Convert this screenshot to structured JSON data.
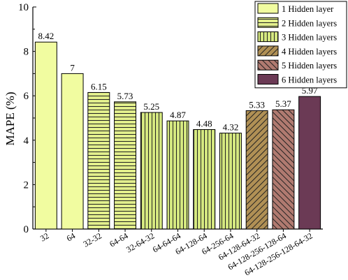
{
  "chart_data": {
    "type": "bar",
    "title": "",
    "xlabel": "",
    "ylabel": "MAPE (%)",
    "ylim": [
      0,
      10
    ],
    "yticks": [
      0,
      2,
      4,
      6,
      8,
      10
    ],
    "grid": false,
    "legend_position": "top-right",
    "categories": [
      "32",
      "64",
      "32-32",
      "64-64",
      "32-64-32",
      "64-64-64",
      "64-128-64",
      "64-256-64",
      "64-128-64-32",
      "64-128-256-128-64",
      "64-128-256-128-64-32"
    ],
    "values": [
      8.42,
      7,
      6.15,
      5.73,
      5.25,
      4.87,
      4.48,
      4.32,
      5.33,
      5.37,
      5.97
    ],
    "value_labels": [
      "8.42",
      "7",
      "6.15",
      "5.73",
      "5.25",
      "4.87",
      "4.48",
      "4.32",
      "5.33",
      "5.37",
      "5.97"
    ],
    "groups": [
      0,
      0,
      1,
      1,
      2,
      2,
      2,
      2,
      3,
      4,
      5
    ],
    "series": [
      {
        "name": "1 Hidden layer",
        "fill": "#f1fca0",
        "pattern": "none"
      },
      {
        "name": "2 Hidden layers",
        "fill": "#e2ef8c",
        "pattern": "horizontal"
      },
      {
        "name": "3 Hidden layers",
        "fill": "#d5e880",
        "pattern": "vertical"
      },
      {
        "name": "4 Hidden layers",
        "fill": "#b09055",
        "pattern": "diagonal-up"
      },
      {
        "name": "5 Hidden layers",
        "fill": "#b07a70",
        "pattern": "diagonal-down"
      },
      {
        "name": "6 Hidden layers",
        "fill": "#6b3a55",
        "pattern": "none"
      }
    ]
  }
}
